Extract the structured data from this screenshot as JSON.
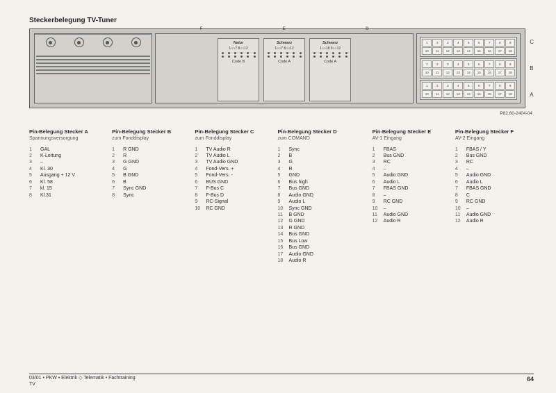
{
  "title": "Steckerbelegung TV-Tuner",
  "partnum": "P82.60-2404-04",
  "diagram": {
    "top_labels": [
      "F",
      "E",
      "D"
    ],
    "row_labels": [
      "C",
      "B",
      "A"
    ],
    "mid_blocks": [
      {
        "title": "Natur",
        "range": "1○○7  8○○12",
        "code": "Code B"
      },
      {
        "title": "Schwarz",
        "range": "1○○7  8○○12",
        "code": "Code A"
      },
      {
        "title": "Schwarz",
        "range": "1○○18  9○○12",
        "code": "Code A"
      }
    ],
    "colors": {
      "page_bg": "#f4f2ed",
      "panel_bg": "#c8c7c2",
      "inner_bg": "#d2d1cc",
      "block_bg": "#e2e1dc",
      "border": "#555"
    }
  },
  "columns": [
    {
      "head": "Pin-Belegung Stecker A",
      "sub": "Spannungsversorgung",
      "pins": [
        [
          1,
          "GAL"
        ],
        [
          2,
          "K-Leitung"
        ],
        [
          3,
          "–"
        ],
        [
          4,
          "Kl. 30"
        ],
        [
          5,
          "Ausgang + 12 V"
        ],
        [
          6,
          "Kl. 58"
        ],
        [
          7,
          "kl. 15"
        ],
        [
          8,
          "Kl.31"
        ]
      ]
    },
    {
      "head": "Pin-Belegung Stecker B",
      "sub": "zum Fonddisplay",
      "pins": [
        [
          1,
          "R GND"
        ],
        [
          2,
          "R"
        ],
        [
          3,
          "G GND"
        ],
        [
          4,
          "G"
        ],
        [
          5,
          "B GND"
        ],
        [
          6,
          "B"
        ],
        [
          7,
          "Sync GND"
        ],
        [
          8,
          "Sync"
        ]
      ]
    },
    {
      "head": "Pin-Belegung Stecker C",
      "sub": "zum Fonddisplay",
      "pins": [
        [
          1,
          "TV Audio R"
        ],
        [
          2,
          "TV Audio L"
        ],
        [
          3,
          "TV Audio GND"
        ],
        [
          4,
          "Fond-Vers. +"
        ],
        [
          5,
          "Fond-Vers. -"
        ],
        [
          6,
          "BUS GND"
        ],
        [
          7,
          "F-Bus C"
        ],
        [
          8,
          "F-Bus D"
        ],
        [
          9,
          "RC-Signal"
        ],
        [
          10,
          "RC GND"
        ]
      ]
    },
    {
      "head": "Pin-Belegung Stecker D",
      "sub": "zum COMAND",
      "pins": [
        [
          1,
          "Sync"
        ],
        [
          2,
          "B"
        ],
        [
          3,
          "G"
        ],
        [
          4,
          "R"
        ],
        [
          5,
          "GND"
        ],
        [
          6,
          "Bus high"
        ],
        [
          7,
          "Bus GND"
        ],
        [
          8,
          "Audio GND"
        ],
        [
          9,
          "Audio L"
        ],
        [
          10,
          "Sync GND"
        ],
        [
          11,
          "B GND"
        ],
        [
          12,
          "G GND"
        ],
        [
          13,
          "R GND"
        ],
        [
          14,
          "Bus GND"
        ],
        [
          15,
          "Bus Low"
        ],
        [
          16,
          "Bus GND"
        ],
        [
          17,
          "Audio GND"
        ],
        [
          18,
          "Audio R"
        ]
      ]
    },
    {
      "head": "Pin-Belegung Stecker E",
      "sub": "AV-1 Eingang",
      "pins": [
        [
          1,
          "FBAS"
        ],
        [
          2,
          "Bus GND"
        ],
        [
          3,
          "RC"
        ],
        [
          4,
          "–"
        ],
        [
          5,
          "Audio GND"
        ],
        [
          6,
          "Audio L"
        ],
        [
          7,
          "FBAS GND"
        ],
        [
          8,
          "–"
        ],
        [
          9,
          "RC GND"
        ],
        [
          10,
          "–"
        ],
        [
          11,
          "Audio GND"
        ],
        [
          12,
          "Audio R"
        ]
      ]
    },
    {
      "head": "Pin-Belegung Stecker F",
      "sub": "AV-2 Eingang",
      "pins": [
        [
          1,
          "FBAS / Y"
        ],
        [
          2,
          "Bus GND"
        ],
        [
          3,
          "RC"
        ],
        [
          4,
          "–"
        ],
        [
          5,
          "Audio GND"
        ],
        [
          6,
          "Audio L"
        ],
        [
          7,
          "FBAS GND"
        ],
        [
          8,
          "C"
        ],
        [
          9,
          "RC GND"
        ],
        [
          10,
          "–"
        ],
        [
          11,
          "Audio GND"
        ],
        [
          12,
          "Audio R"
        ]
      ]
    }
  ],
  "footer": {
    "line1": "03/01  •  PKW • Elektrik ◇ Telematik • Fachtraining",
    "line2": "TV",
    "page": "64"
  }
}
